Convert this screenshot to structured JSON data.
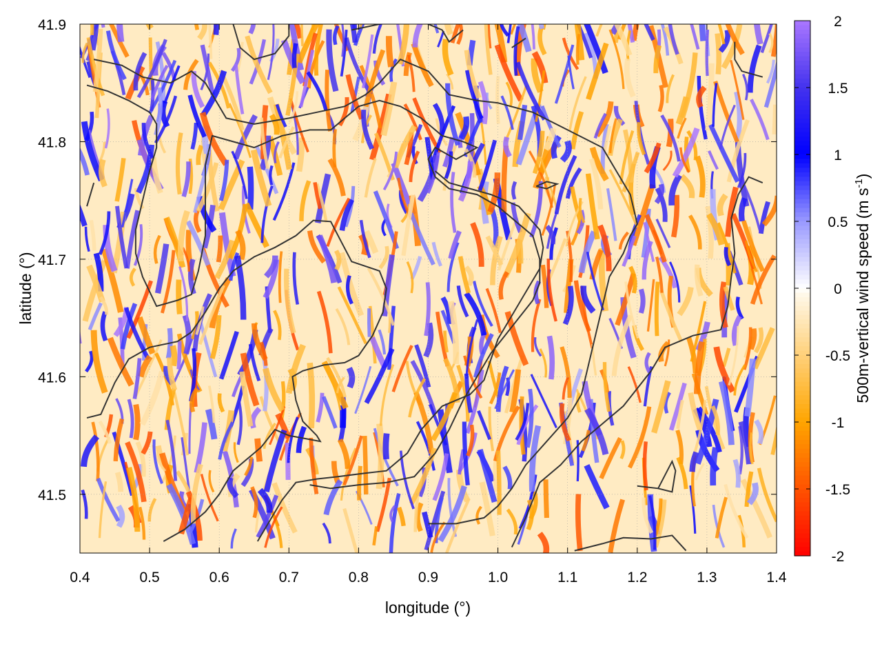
{
  "chart_data": {
    "type": "heatmap",
    "xlabel": "longitude (°)",
    "ylabel": "latitude (°)",
    "colorbar_label": "500m-vertical wind speed (m s",
    "colorbar_label_sup": "-1",
    "colorbar_label_end": ")",
    "xlim": [
      0.4,
      1.4
    ],
    "ylim": [
      41.45,
      41.9
    ],
    "x_ticks": [
      0.4,
      0.5,
      0.6,
      0.7,
      0.8,
      0.9,
      1.0,
      1.1,
      1.2,
      1.3,
      1.4
    ],
    "x_tick_labels": [
      "0.4",
      "0.5",
      "0.6",
      "0.7",
      "0.8",
      "0.9",
      "1.0",
      "1.1",
      "1.2",
      "1.3",
      "1.4"
    ],
    "y_ticks": [
      41.5,
      41.6,
      41.7,
      41.8,
      41.9
    ],
    "y_tick_labels": [
      "41.5",
      "41.6",
      "41.7",
      "41.8",
      "41.9"
    ],
    "color_range": [
      -2,
      2
    ],
    "colorbar_ticks": [
      2,
      1.5,
      1,
      0.5,
      0,
      -0.5,
      -1,
      -1.5,
      -2
    ],
    "colorbar_tick_labels": [
      "2",
      "1.5",
      "1",
      "0.5",
      "0",
      "-0.5",
      "-1",
      "-1.5",
      "-2"
    ],
    "colormap": [
      {
        "v": -2.0,
        "color": "#ff0000"
      },
      {
        "v": -1.0,
        "color": "#ffa500"
      },
      {
        "v": -0.05,
        "color": "#fff8e8"
      },
      {
        "v": 0.0,
        "color": "#ffffff"
      },
      {
        "v": 0.5,
        "color": "#9999ff"
      },
      {
        "v": 1.0,
        "color": "#0000ff"
      },
      {
        "v": 1.5,
        "color": "#4433ee"
      },
      {
        "v": 2.0,
        "color": "#aa77ff"
      }
    ],
    "grid": true,
    "contour_color": "#333333",
    "contours": [
      [
        [
          0.42,
          41.87
        ],
        [
          0.46,
          41.865
        ],
        [
          0.49,
          41.855
        ],
        [
          0.53,
          41.85
        ],
        [
          0.56,
          41.86
        ],
        [
          0.58,
          41.85
        ],
        [
          0.61,
          41.82
        ],
        [
          0.65,
          41.815
        ],
        [
          0.7,
          41.82
        ],
        [
          0.74,
          41.825
        ],
        [
          0.78,
          41.83
        ],
        [
          0.81,
          41.84
        ],
        [
          0.83,
          41.85
        ],
        [
          0.86,
          41.87
        ],
        [
          0.9,
          41.86
        ],
        [
          0.93,
          41.84
        ],
        [
          0.97,
          41.835
        ],
        [
          1.0,
          41.833
        ],
        [
          1.05,
          41.825
        ],
        [
          1.1,
          41.81
        ],
        [
          1.15,
          41.795
        ],
        [
          1.17,
          41.775
        ],
        [
          1.19,
          41.755
        ],
        [
          1.2,
          41.73
        ],
        [
          1.19,
          41.72
        ],
        [
          1.18,
          41.705
        ],
        [
          1.16,
          41.685
        ],
        [
          1.15,
          41.66
        ],
        [
          1.14,
          41.635
        ],
        [
          1.13,
          41.61
        ],
        [
          1.12,
          41.585
        ],
        [
          1.1,
          41.565
        ],
        [
          1.07,
          41.545
        ],
        [
          1.04,
          41.525
        ],
        [
          1.02,
          41.505
        ],
        [
          1.0,
          41.49
        ],
        [
          0.98,
          41.48
        ],
        [
          0.94,
          41.475
        ],
        [
          0.9,
          41.475
        ]
      ],
      [
        [
          0.41,
          41.848
        ],
        [
          0.44,
          41.843
        ],
        [
          0.47,
          41.835
        ],
        [
          0.5,
          41.825
        ],
        [
          0.51,
          41.815
        ],
        [
          0.51,
          41.795
        ],
        [
          0.5,
          41.775
        ],
        [
          0.49,
          41.75
        ],
        [
          0.48,
          41.725
        ],
        [
          0.48,
          41.705
        ],
        [
          0.49,
          41.685
        ],
        [
          0.51,
          41.66
        ],
        [
          0.54,
          41.665
        ],
        [
          0.56,
          41.67
        ],
        [
          0.57,
          41.69
        ],
        [
          0.58,
          41.72
        ],
        [
          0.58,
          41.75
        ],
        [
          0.58,
          41.78
        ],
        [
          0.59,
          41.805
        ],
        [
          0.62,
          41.8
        ],
        [
          0.65,
          41.795
        ],
        [
          0.69,
          41.805
        ],
        [
          0.73,
          41.81
        ],
        [
          0.76,
          41.81
        ],
        [
          0.78,
          41.82
        ],
        [
          0.8,
          41.83
        ],
        [
          0.83,
          41.835
        ],
        [
          0.86,
          41.83
        ],
        [
          0.89,
          41.82
        ],
        [
          0.92,
          41.805
        ],
        [
          0.95,
          41.8
        ],
        [
          0.97,
          41.795
        ],
        [
          0.94,
          41.785
        ],
        [
          0.91,
          41.795
        ],
        [
          0.9,
          41.785
        ],
        [
          0.91,
          41.77
        ],
        [
          0.93,
          41.76
        ],
        [
          0.97,
          41.755
        ],
        [
          1.0,
          41.745
        ],
        [
          1.03,
          41.73
        ],
        [
          1.05,
          41.72
        ],
        [
          1.06,
          41.7
        ],
        [
          1.06,
          41.68
        ],
        [
          1.05,
          41.665
        ],
        [
          1.03,
          41.65
        ],
        [
          1.01,
          41.635
        ],
        [
          0.99,
          41.62
        ],
        [
          0.97,
          41.6
        ],
        [
          0.95,
          41.58
        ],
        [
          0.93,
          41.555
        ],
        [
          0.91,
          41.535
        ],
        [
          0.88,
          41.515
        ],
        [
          0.84,
          41.51
        ],
        [
          0.8,
          41.508
        ],
        [
          0.76,
          41.505
        ],
        [
          0.73,
          41.508
        ]
      ],
      [
        [
          0.41,
          41.565
        ],
        [
          0.43,
          41.568
        ],
        [
          0.45,
          41.595
        ],
        [
          0.47,
          41.615
        ],
        [
          0.5,
          41.625
        ],
        [
          0.54,
          41.63
        ],
        [
          0.56,
          41.638
        ],
        [
          0.58,
          41.655
        ],
        [
          0.6,
          41.675
        ],
        [
          0.62,
          41.69
        ],
        [
          0.65,
          41.702
        ],
        [
          0.68,
          41.71
        ],
        [
          0.71,
          41.72
        ],
        [
          0.735,
          41.733
        ],
        [
          0.76,
          41.732
        ],
        [
          0.775,
          41.715
        ],
        [
          0.79,
          41.698
        ],
        [
          0.83,
          41.69
        ],
        [
          0.84,
          41.675
        ],
        [
          0.835,
          41.655
        ],
        [
          0.82,
          41.635
        ],
        [
          0.8,
          41.618
        ],
        [
          0.78,
          41.612
        ],
        [
          0.75,
          41.61
        ],
        [
          0.72,
          41.605
        ],
        [
          0.705,
          41.6
        ],
        [
          0.71,
          41.58
        ],
        [
          0.72,
          41.562
        ],
        [
          0.74,
          41.55
        ],
        [
          0.745,
          41.545
        ],
        [
          0.7,
          41.55
        ],
        [
          0.68,
          41.555
        ],
        [
          0.66,
          41.54
        ],
        [
          0.64,
          41.53
        ],
        [
          0.62,
          41.52
        ],
        [
          0.6,
          41.5
        ],
        [
          0.58,
          41.485
        ],
        [
          0.55,
          41.47
        ],
        [
          0.52,
          41.46
        ]
      ],
      [
        [
          0.655,
          41.46
        ],
        [
          0.67,
          41.475
        ],
        [
          0.69,
          41.495
        ],
        [
          0.71,
          41.51
        ],
        [
          0.74,
          41.513
        ],
        [
          0.77,
          41.515
        ],
        [
          0.81,
          41.518
        ],
        [
          0.84,
          41.52
        ],
        [
          0.87,
          41.535
        ],
        [
          0.89,
          41.555
        ],
        [
          0.92,
          41.575
        ],
        [
          0.96,
          41.585
        ],
        [
          0.98,
          41.597
        ],
        [
          0.99,
          41.615
        ],
        [
          1.0,
          41.632
        ],
        [
          1.02,
          41.652
        ],
        [
          1.04,
          41.672
        ],
        [
          1.06,
          41.692
        ],
        [
          1.065,
          41.71
        ],
        [
          1.06,
          41.725
        ],
        [
          1.03,
          41.745
        ],
        [
          0.99,
          41.755
        ],
        [
          0.96,
          41.76
        ],
        [
          0.93,
          41.765
        ],
        [
          0.91,
          41.775
        ]
      ],
      [
        [
          1.02,
          41.455
        ],
        [
          1.04,
          41.48
        ],
        [
          1.06,
          41.51
        ],
        [
          1.09,
          41.525
        ],
        [
          1.12,
          41.545
        ],
        [
          1.15,
          41.56
        ],
        [
          1.18,
          41.575
        ],
        [
          1.2,
          41.59
        ],
        [
          1.22,
          41.605
        ],
        [
          1.24,
          41.625
        ],
        [
          1.28,
          41.635
        ],
        [
          1.32,
          41.64
        ],
        [
          1.33,
          41.66
        ],
        [
          1.335,
          41.685
        ],
        [
          1.34,
          41.705
        ],
        [
          1.335,
          41.735
        ],
        [
          1.345,
          41.755
        ],
        [
          1.36,
          41.77
        ],
        [
          1.38,
          41.765
        ]
      ],
      [
        [
          1.11,
          41.452
        ],
        [
          1.15,
          41.458
        ],
        [
          1.18,
          41.463
        ],
        [
          1.22,
          41.462
        ],
        [
          1.25,
          41.465
        ],
        [
          1.27,
          41.452
        ]
      ],
      [
        [
          1.2,
          41.507
        ],
        [
          1.23,
          41.505
        ],
        [
          1.25,
          41.502
        ],
        [
          1.255,
          41.52
        ],
        [
          1.25,
          41.528
        ],
        [
          1.23,
          41.505
        ]
      ],
      [
        [
          0.62,
          41.9
        ],
        [
          0.63,
          41.88
        ],
        [
          0.65,
          41.87
        ],
        [
          0.68,
          41.875
        ],
        [
          0.7,
          41.89
        ],
        [
          0.7,
          41.9
        ]
      ],
      [
        [
          0.79,
          41.895
        ],
        [
          0.83,
          41.9
        ],
        [
          0.88,
          41.905
        ],
        [
          0.92,
          41.895
        ],
        [
          0.93,
          41.885
        ],
        [
          0.95,
          41.895
        ]
      ],
      [
        [
          1.02,
          41.88
        ],
        [
          1.04,
          41.888
        ]
      ],
      [
        [
          1.34,
          41.885
        ],
        [
          1.34,
          41.87
        ],
        [
          1.35,
          41.86
        ],
        [
          1.38,
          41.855
        ]
      ],
      [
        [
          0.42,
          41.765
        ],
        [
          0.41,
          41.745
        ]
      ],
      [
        [
          1.055,
          41.762
        ],
        [
          1.07,
          41.766
        ],
        [
          1.085,
          41.764
        ],
        [
          1.07,
          41.76
        ],
        [
          1.055,
          41.762
        ]
      ]
    ]
  }
}
